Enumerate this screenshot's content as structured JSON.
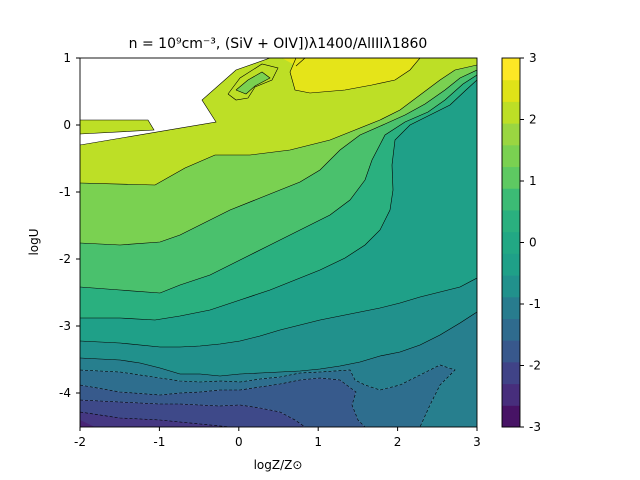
{
  "chart_data": {
    "type": "contourf",
    "title": "n = 10⁹cm⁻³, (SiV + OIV])λ1400/AlIIIλ1860",
    "xlabel": "logZ/Z⊙",
    "ylabel": "logU",
    "xlim": [
      -2,
      3
    ],
    "ylim": [
      -4.5,
      1
    ],
    "x_ticks": [
      -2,
      -1,
      0,
      1,
      2,
      3
    ],
    "y_ticks": [
      1,
      0,
      -1,
      -2,
      -3,
      -4
    ],
    "colorbar": {
      "ticks": [
        3,
        2,
        1,
        0,
        -1,
        -2,
        -3
      ],
      "levels": [
        -3,
        -2.75,
        -2.5,
        -2.25,
        -2,
        -1.75,
        -1.5,
        -1.25,
        -1,
        -0.75,
        -0.5,
        -0.25,
        0,
        0.25,
        0.5,
        0.75,
        1,
        1.25,
        1.5,
        1.75,
        2,
        2.25,
        2.5,
        2.75,
        3
      ],
      "colors": [
        "#471365",
        "#472e7c",
        "#404387",
        "#38588c",
        "#2f6b8e",
        "#287c8e",
        "#21918c",
        "#1fa088",
        "#22a884",
        "#2ab07f",
        "#3cbb75",
        "#5ec962",
        "#7ad151",
        "#9ad641",
        "#bddf26",
        "#dfe318",
        "#fde725"
      ]
    },
    "bands": [
      {
        "level": "2.75 to 3",
        "color": "#e5e419"
      },
      {
        "level": "2.5 to 2.75",
        "color": "#bddf26"
      },
      {
        "level": "2.0 to 2.5",
        "color": "#7ad151"
      },
      {
        "level": "1.5 to 2.0",
        "color": "#4ac16d"
      },
      {
        "level": "1.0 to 1.5",
        "color": "#2ab07f"
      },
      {
        "level": "0.5 to 1.0",
        "color": "#1fa088"
      },
      {
        "level": "0.0 to 0.5",
        "color": "#21918c"
      },
      {
        "level": "-0.5 to 0.0",
        "color": "#277f8e"
      },
      {
        "level": "-1.0 to -0.5",
        "color": "#2e6e8e"
      },
      {
        "level": "-1.5 to -1.0",
        "color": "#375a8c"
      },
      {
        "level": "-2.0 to -1.5",
        "color": "#3e4989"
      },
      {
        "level": "-2.5 to -2.0",
        "color": "#453882"
      },
      {
        "level": "-3.0 to -2.5",
        "color": "#482475"
      }
    ]
  }
}
